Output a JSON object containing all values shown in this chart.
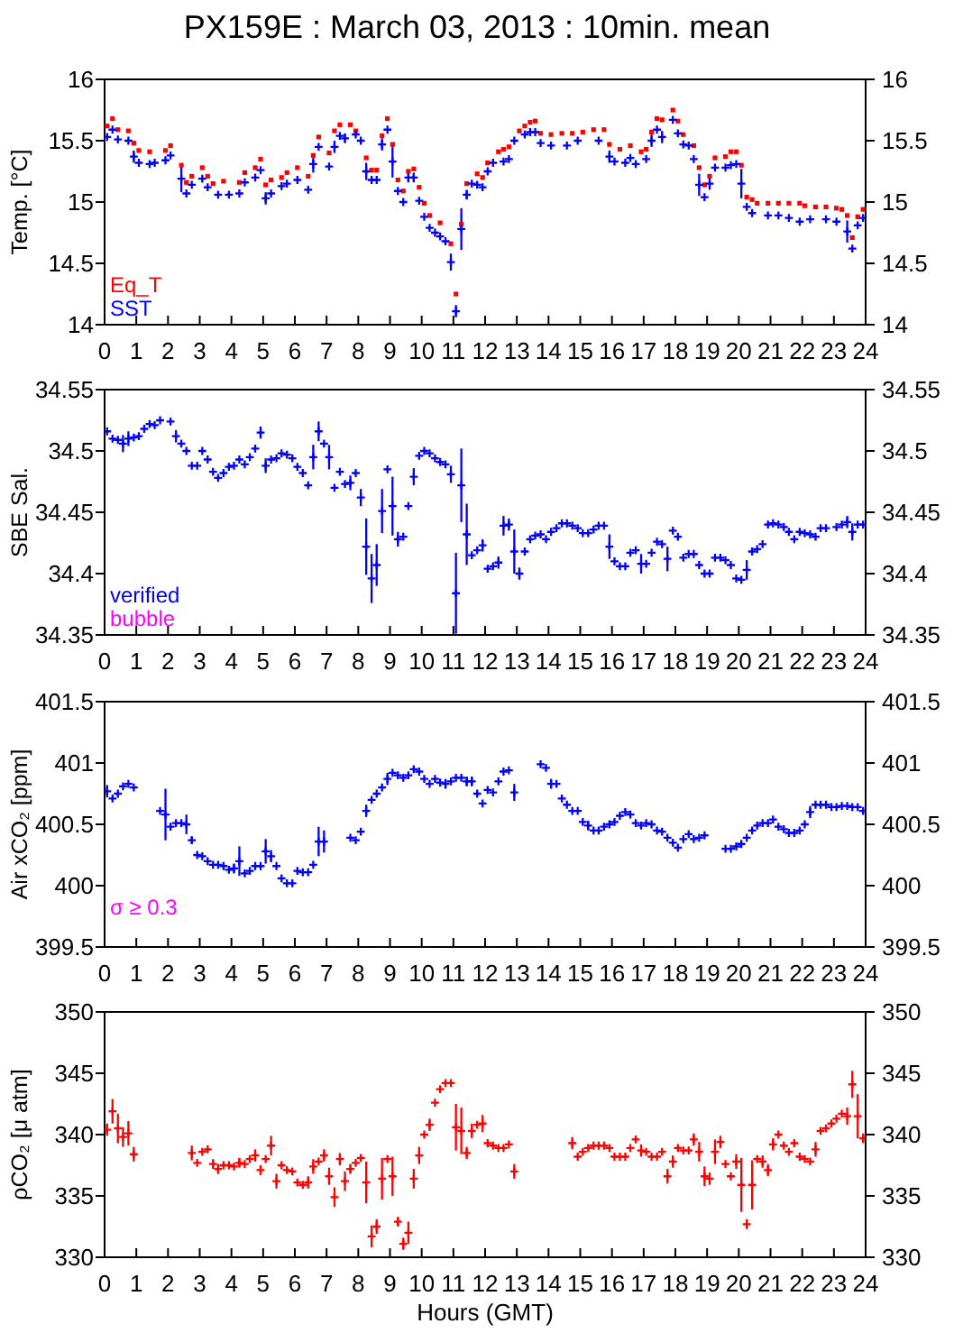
{
  "chart_data": [
    {
      "type": "scatter",
      "title": "PX159E : March 03, 2013 : 10min. mean",
      "ylabel": "Temp. [°C]",
      "xlim": [
        0,
        24
      ],
      "xticks": [
        0,
        1,
        2,
        3,
        4,
        5,
        6,
        7,
        8,
        9,
        10,
        11,
        12,
        13,
        14,
        15,
        16,
        17,
        18,
        19,
        20,
        21,
        22,
        23,
        24
      ],
      "ylim": [
        14,
        16
      ],
      "yticks": [
        14,
        14.5,
        15,
        15.5,
        16
      ],
      "y2lim": [
        14,
        16
      ],
      "y2ticks": [
        14,
        14.5,
        15,
        15.5,
        16
      ],
      "legend": "bottom left",
      "marker": "cross",
      "series": [
        {
          "name": "Eq_T",
          "color": "#ff0000",
          "marker": "square",
          "x": [
            0.08,
            0.25,
            0.42,
            0.75,
            0.92,
            1.08,
            1.42,
            1.92,
            2.08,
            2.42,
            2.58,
            2.75,
            3.08,
            3.25,
            3.42,
            3.75,
            4.25,
            4.42,
            4.75,
            4.92,
            5.08,
            5.25,
            5.58,
            5.75,
            6.08,
            6.42,
            6.58,
            6.75,
            7.08,
            7.25,
            7.42,
            7.75,
            7.92,
            8.25,
            8.42,
            8.58,
            8.75,
            8.92,
            9.08,
            9.25,
            9.42,
            9.58,
            9.75,
            9.92,
            10.08,
            10.25,
            10.58,
            10.92,
            11.08,
            11.25,
            11.42,
            11.75,
            11.92,
            12.08,
            12.42,
            12.58,
            12.75,
            13.08,
            13.25,
            13.42,
            13.58,
            13.75,
            14.08,
            14.42,
            14.75,
            15.08,
            15.42,
            15.75,
            15.92,
            16.25,
            16.58,
            16.92,
            17.08,
            17.25,
            17.42,
            17.58,
            17.92,
            18.08,
            18.25,
            18.58,
            18.75,
            18.92,
            19.08,
            19.25,
            19.58,
            19.75,
            19.92,
            20.08,
            20.25,
            20.42,
            20.58,
            20.92,
            21.25,
            21.58,
            21.92,
            22.08,
            22.42,
            22.75,
            23.08,
            23.25,
            23.42,
            23.58,
            23.75,
            23.92
          ],
          "values": [
            15.62,
            15.68,
            15.59,
            15.58,
            15.48,
            15.42,
            15.41,
            15.42,
            15.46,
            15.3,
            15.16,
            15.21,
            15.28,
            15.21,
            15.15,
            15.17,
            15.16,
            15.24,
            15.28,
            15.35,
            15.14,
            15.18,
            15.2,
            15.24,
            15.28,
            15.21,
            15.38,
            15.53,
            15.4,
            15.58,
            15.63,
            15.63,
            15.58,
            15.36,
            15.26,
            15.26,
            15.54,
            15.68,
            15.47,
            15.18,
            15.09,
            15.25,
            15.27,
            15.12,
            14.99,
            14.89,
            14.83,
            14.66,
            14.25,
            14.82,
            15.15,
            15.23,
            15.2,
            15.32,
            15.41,
            15.43,
            15.45,
            15.58,
            15.62,
            15.65,
            15.66,
            15.56,
            15.55,
            15.56,
            15.56,
            15.57,
            15.59,
            15.59,
            15.47,
            15.43,
            15.46,
            15.41,
            15.43,
            15.57,
            15.68,
            15.67,
            15.75,
            15.66,
            15.55,
            15.46,
            15.28,
            15.14,
            15.21,
            15.36,
            15.37,
            15.41,
            15.41,
            15.3,
            15.04,
            15.02,
            14.99,
            14.99,
            14.99,
            14.99,
            14.99,
            14.97,
            14.96,
            14.96,
            14.95,
            14.94,
            14.89,
            14.71,
            14.88,
            14.94
          ]
        },
        {
          "name": "SST",
          "color": "#0000ff",
          "x": [
            0.08,
            0.25,
            0.42,
            0.75,
            0.92,
            1.08,
            1.42,
            1.58,
            1.92,
            2.08,
            2.42,
            2.58,
            2.75,
            3.08,
            3.25,
            3.58,
            3.92,
            4.25,
            4.42,
            4.75,
            4.92,
            5.08,
            5.25,
            5.58,
            5.75,
            6.08,
            6.42,
            6.58,
            6.75,
            7.08,
            7.25,
            7.42,
            7.58,
            7.92,
            8.08,
            8.25,
            8.42,
            8.58,
            8.75,
            8.92,
            9.08,
            9.25,
            9.42,
            9.58,
            9.75,
            9.92,
            10.08,
            10.25,
            10.42,
            10.58,
            10.75,
            10.92,
            11.08,
            11.25,
            11.42,
            11.58,
            11.75,
            11.92,
            12.08,
            12.25,
            12.58,
            12.75,
            12.92,
            13.25,
            13.42,
            13.58,
            13.75,
            14.08,
            14.58,
            14.92,
            15.58,
            15.92,
            16.08,
            16.42,
            16.58,
            16.75,
            17.08,
            17.25,
            17.42,
            17.58,
            17.92,
            18.08,
            18.25,
            18.42,
            18.58,
            18.75,
            18.92,
            19.08,
            19.25,
            19.58,
            19.75,
            19.92,
            20.08,
            20.25,
            20.42,
            20.92,
            21.25,
            21.58,
            21.92,
            22.25,
            22.75,
            23.08,
            23.42,
            23.58,
            23.75,
            23.92
          ],
          "values": [
            15.53,
            15.59,
            15.51,
            15.5,
            15.37,
            15.32,
            15.31,
            15.32,
            15.34,
            15.38,
            15.19,
            15.07,
            15.14,
            15.19,
            15.12,
            15.06,
            15.06,
            15.07,
            15.16,
            15.2,
            15.26,
            15.03,
            15.07,
            15.13,
            15.15,
            15.18,
            15.1,
            15.31,
            15.45,
            15.29,
            15.45,
            15.54,
            15.52,
            15.55,
            15.5,
            15.25,
            15.18,
            15.18,
            15.47,
            15.59,
            15.33,
            15.09,
            15.0,
            15.2,
            15.2,
            15.01,
            14.88,
            14.79,
            14.75,
            14.72,
            14.68,
            14.51,
            14.11,
            14.78,
            15.06,
            15.15,
            15.14,
            15.12,
            15.25,
            15.32,
            15.33,
            15.35,
            15.5,
            15.55,
            15.57,
            15.57,
            15.48,
            15.46,
            15.46,
            15.5,
            15.5,
            15.37,
            15.33,
            15.32,
            15.36,
            15.31,
            15.35,
            15.5,
            15.59,
            15.53,
            15.67,
            15.56,
            15.47,
            15.46,
            15.35,
            15.14,
            15.04,
            15.15,
            15.28,
            15.28,
            15.3,
            15.31,
            15.15,
            14.96,
            14.91,
            14.89,
            14.89,
            14.87,
            14.84,
            14.86,
            14.86,
            14.84,
            14.76,
            14.62,
            14.81,
            14.87
          ],
          "errors": [
            null,
            null,
            null,
            null,
            0.05,
            null,
            null,
            null,
            null,
            null,
            0.11,
            null,
            null,
            null,
            null,
            null,
            null,
            null,
            null,
            null,
            null,
            0.05,
            null,
            null,
            null,
            null,
            null,
            0.07,
            null,
            null,
            0.05,
            null,
            0.04,
            null,
            null,
            0.07,
            null,
            null,
            0.05,
            null,
            0.13,
            null,
            null,
            0.04,
            0.04,
            null,
            null,
            null,
            null,
            null,
            null,
            0.07,
            0.05,
            0.17,
            0.04,
            null,
            null,
            null,
            null,
            null,
            null,
            null,
            null,
            null,
            null,
            null,
            null,
            null,
            null,
            null,
            null,
            0.05,
            null,
            null,
            null,
            null,
            null,
            0.05,
            null,
            0.05,
            null,
            null,
            null,
            null,
            null,
            0.09,
            null,
            0.05,
            null,
            null,
            null,
            null,
            0.12,
            null,
            null,
            null,
            null,
            null,
            null,
            null,
            null,
            null,
            0.09,
            null,
            null,
            null
          ]
        }
      ]
    },
    {
      "type": "scatter",
      "ylabel": "SBE Sal.",
      "xlim": [
        0,
        24
      ],
      "xticks": [
        0,
        1,
        2,
        3,
        4,
        5,
        6,
        7,
        8,
        9,
        10,
        11,
        12,
        13,
        14,
        15,
        16,
        17,
        18,
        19,
        20,
        21,
        22,
        23,
        24
      ],
      "ylim": [
        34.35,
        34.55
      ],
      "yticks": [
        34.35,
        34.4,
        34.45,
        34.5,
        34.55
      ],
      "y2lim": [
        34.35,
        34.55
      ],
      "y2ticks": [
        34.35,
        34.4,
        34.45,
        34.5,
        34.55
      ],
      "legend": "bottom left",
      "marker": "cross",
      "series": [
        {
          "name": "verified",
          "color": "#0000ff",
          "x": [
            0.08,
            0.25,
            0.42,
            0.58,
            0.75,
            0.92,
            1.08,
            1.25,
            1.42,
            1.58,
            1.75,
            2.08,
            2.25,
            2.42,
            2.58,
            2.75,
            2.92,
            3.08,
            3.25,
            3.42,
            3.58,
            3.75,
            3.92,
            4.08,
            4.25,
            4.42,
            4.58,
            4.75,
            4.92,
            5.08,
            5.25,
            5.42,
            5.58,
            5.75,
            5.92,
            6.08,
            6.25,
            6.42,
            6.58,
            6.75,
            6.92,
            7.08,
            7.25,
            7.42,
            7.58,
            7.75,
            7.92,
            8.08,
            8.25,
            8.42,
            8.58,
            8.75,
            8.92,
            9.08,
            9.25,
            9.42,
            9.58,
            9.75,
            9.92,
            10.08,
            10.25,
            10.42,
            10.58,
            10.75,
            10.92,
            11.08,
            11.25,
            11.42,
            11.58,
            11.75,
            11.92,
            12.08,
            12.25,
            12.42,
            12.58,
            12.75,
            12.92,
            13.08,
            13.25,
            13.42,
            13.58,
            13.75,
            13.92,
            14.08,
            14.25,
            14.42,
            14.58,
            14.75,
            14.92,
            15.08,
            15.25,
            15.42,
            15.58,
            15.75,
            15.92,
            16.08,
            16.25,
            16.42,
            16.58,
            16.75,
            16.92,
            17.08,
            17.25,
            17.42,
            17.58,
            17.75,
            17.92,
            18.08,
            18.25,
            18.42,
            18.58,
            18.75,
            18.92,
            19.08,
            19.25,
            19.42,
            19.58,
            19.75,
            19.92,
            20.08,
            20.25,
            20.42,
            20.58,
            20.75,
            20.92,
            21.08,
            21.25,
            21.42,
            21.58,
            21.75,
            21.92,
            22.08,
            22.25,
            22.42,
            22.58,
            22.75,
            23.08,
            23.25,
            23.42,
            23.58,
            23.75,
            23.92
          ],
          "values": [
            34.516,
            34.51,
            34.509,
            34.506,
            34.51,
            34.511,
            34.512,
            34.518,
            34.522,
            34.521,
            34.525,
            34.524,
            34.512,
            34.506,
            34.5,
            34.488,
            34.488,
            34.5,
            34.493,
            34.483,
            34.478,
            34.482,
            34.487,
            34.488,
            34.493,
            34.489,
            34.495,
            34.502,
            34.515,
            34.488,
            34.493,
            34.494,
            34.498,
            34.497,
            34.494,
            34.487,
            34.482,
            34.472,
            34.495,
            34.516,
            34.506,
            34.495,
            34.47,
            34.483,
            34.473,
            34.474,
            34.482,
            34.462,
            34.422,
            34.396,
            34.407,
            34.451,
            34.485,
            34.455,
            34.428,
            34.43,
            34.455,
            34.479,
            34.496,
            34.5,
            34.498,
            34.494,
            34.491,
            34.489,
            34.481,
            34.384,
            34.472,
            34.432,
            34.415,
            34.419,
            34.423,
            34.404,
            34.406,
            34.409,
            34.439,
            34.44,
            34.418,
            34.4,
            34.418,
            34.428,
            34.431,
            34.432,
            34.428,
            34.434,
            34.437,
            34.441,
            34.441,
            34.439,
            34.437,
            34.433,
            34.433,
            34.436,
            34.439,
            34.439,
            34.422,
            34.41,
            34.406,
            34.406,
            34.417,
            34.419,
            34.408,
            34.408,
            34.417,
            34.426,
            34.424,
            34.412,
            34.435,
            34.43,
            34.413,
            34.416,
            34.416,
            34.407,
            34.4,
            34.4,
            34.413,
            34.413,
            34.411,
            34.407,
            34.396,
            34.395,
            34.403,
            34.418,
            34.42,
            34.424,
            34.44,
            34.441,
            34.44,
            34.438,
            34.434,
            34.428,
            34.434,
            34.433,
            34.432,
            34.43,
            34.437,
            34.437,
            34.438,
            34.44,
            34.442,
            34.434,
            34.44,
            34.44
          ],
          "errors": [
            null,
            null,
            null,
            0.007,
            0.006,
            null,
            null,
            null,
            null,
            null,
            null,
            null,
            0.005,
            null,
            null,
            null,
            null,
            null,
            null,
            null,
            null,
            null,
            null,
            null,
            null,
            null,
            null,
            null,
            0.005,
            0.006,
            null,
            null,
            null,
            null,
            null,
            null,
            null,
            null,
            0.01,
            0.008,
            null,
            0.01,
            null,
            null,
            null,
            0.006,
            null,
            0.007,
            0.023,
            0.02,
            0.017,
            0.018,
            null,
            0.024,
            0.006,
            null,
            null,
            0.007,
            null,
            null,
            null,
            null,
            null,
            null,
            0.007,
            0.033,
            0.03,
            0.025,
            null,
            null,
            0.005,
            null,
            null,
            0.005,
            0.008,
            0.005,
            0.018,
            0.005,
            null,
            null,
            null,
            null,
            null,
            null,
            null,
            null,
            null,
            null,
            null,
            null,
            null,
            null,
            null,
            null,
            0.01,
            null,
            null,
            null,
            null,
            null,
            0.008,
            null,
            null,
            null,
            null,
            0.01,
            null,
            null,
            null,
            null,
            null,
            null,
            null,
            null,
            null,
            null,
            null,
            null,
            null,
            null,
            0.008,
            null,
            null,
            null,
            null,
            null,
            null,
            null,
            null,
            null,
            null,
            null,
            null,
            null,
            null,
            null,
            null,
            null,
            0.005,
            0.007,
            null,
            null
          ]
        },
        {
          "name": "bubble",
          "color": "#ff00ff"
        }
      ]
    },
    {
      "type": "scatter",
      "ylabel": "Air xCO₂ [ppm]",
      "xlim": [
        0,
        24
      ],
      "xticks": [
        0,
        1,
        2,
        3,
        4,
        5,
        6,
        7,
        8,
        9,
        10,
        11,
        12,
        13,
        14,
        15,
        16,
        17,
        18,
        19,
        20,
        21,
        22,
        23,
        24
      ],
      "ylim": [
        399.5,
        401.5
      ],
      "yticks": [
        399.5,
        400,
        400.5,
        401,
        401.5
      ],
      "y2lim": [
        399.5,
        401.5
      ],
      "y2ticks": [
        399.5,
        400,
        400.5,
        401,
        401.5
      ],
      "marker": "cross",
      "annotations": [
        "σ ≥ 0.3"
      ],
      "series": [
        {
          "color": "#0000ff",
          "x": [
            0.08,
            0.25,
            0.42,
            0.58,
            0.75,
            0.92,
            1.75,
            1.92,
            2.08,
            2.25,
            2.42,
            2.58,
            2.75,
            2.92,
            3.08,
            3.25,
            3.42,
            3.58,
            3.75,
            3.92,
            4.08,
            4.25,
            4.42,
            4.58,
            4.75,
            4.92,
            5.08,
            5.25,
            5.42,
            5.58,
            5.75,
            5.92,
            6.08,
            6.25,
            6.42,
            6.58,
            6.75,
            6.92,
            7.75,
            7.92,
            8.08,
            8.25,
            8.42,
            8.58,
            8.75,
            8.92,
            9.08,
            9.25,
            9.42,
            9.58,
            9.75,
            9.92,
            10.08,
            10.25,
            10.42,
            10.58,
            10.75,
            10.92,
            11.08,
            11.25,
            11.42,
            11.58,
            11.75,
            11.92,
            12.08,
            12.25,
            12.42,
            12.58,
            12.75,
            12.92,
            13.75,
            13.92,
            14.08,
            14.25,
            14.42,
            14.58,
            14.75,
            14.92,
            15.08,
            15.25,
            15.42,
            15.58,
            15.75,
            15.92,
            16.08,
            16.25,
            16.42,
            16.58,
            16.75,
            16.92,
            17.08,
            17.25,
            17.42,
            17.58,
            17.75,
            17.92,
            18.08,
            18.25,
            18.42,
            18.58,
            18.75,
            18.92,
            19.58,
            19.75,
            19.92,
            20.08,
            20.25,
            20.42,
            20.58,
            20.75,
            20.92,
            21.08,
            21.25,
            21.42,
            21.58,
            21.75,
            21.92,
            22.08,
            22.25,
            22.42,
            22.58,
            22.75,
            22.92,
            23.08,
            23.25,
            23.42,
            23.58,
            23.75,
            23.92
          ],
          "values": [
            400.77,
            400.71,
            400.75,
            400.81,
            400.83,
            400.8,
            400.61,
            400.58,
            400.48,
            400.51,
            400.51,
            400.5,
            400.37,
            400.25,
            400.24,
            400.2,
            400.17,
            400.17,
            400.16,
            400.13,
            400.14,
            400.2,
            400.1,
            400.12,
            400.16,
            400.16,
            400.28,
            400.24,
            400.16,
            400.06,
            400.02,
            400.02,
            400.12,
            400.11,
            400.11,
            400.17,
            400.36,
            400.36,
            400.39,
            400.37,
            400.44,
            400.61,
            400.7,
            400.75,
            400.8,
            400.87,
            400.92,
            400.9,
            400.88,
            400.9,
            400.95,
            400.93,
            400.87,
            400.83,
            400.87,
            400.84,
            400.83,
            400.85,
            400.88,
            400.88,
            400.85,
            400.85,
            400.75,
            400.67,
            400.78,
            400.76,
            400.85,
            400.93,
            400.94,
            400.76,
            400.99,
            400.96,
            400.83,
            400.83,
            400.71,
            400.66,
            400.61,
            400.61,
            400.52,
            400.49,
            400.45,
            400.45,
            400.48,
            400.5,
            400.52,
            400.57,
            400.6,
            400.58,
            400.51,
            400.49,
            400.51,
            400.5,
            400.45,
            400.44,
            400.39,
            400.35,
            400.31,
            400.38,
            400.42,
            400.38,
            400.39,
            400.41,
            400.3,
            400.3,
            400.32,
            400.34,
            400.39,
            400.45,
            400.49,
            400.51,
            400.51,
            400.54,
            400.48,
            400.46,
            400.43,
            400.43,
            400.45,
            400.5,
            400.6,
            400.66,
            400.66,
            400.66,
            400.64,
            400.64,
            400.65,
            400.65,
            400.64,
            400.64,
            400.61
          ],
          "errors": [
            0.05,
            null,
            null,
            null,
            null,
            null,
            null,
            0.21,
            null,
            null,
            null,
            0.08,
            0.03,
            null,
            null,
            null,
            null,
            null,
            null,
            null,
            0.04,
            0.12,
            null,
            null,
            null,
            null,
            0.1,
            0.05,
            null,
            null,
            null,
            null,
            null,
            null,
            null,
            null,
            0.12,
            0.09,
            null,
            null,
            null,
            0.05,
            null,
            null,
            null,
            0.05,
            null,
            null,
            null,
            null,
            null,
            null,
            null,
            null,
            null,
            null,
            0.04,
            null,
            null,
            null,
            0.04,
            0.04,
            null,
            null,
            null,
            null,
            null,
            null,
            null,
            0.07,
            null,
            null,
            0.04,
            null,
            null,
            null,
            null,
            null,
            null,
            0.04,
            null,
            null,
            null,
            null,
            null,
            null,
            null,
            null,
            null,
            null,
            null,
            null,
            null,
            null,
            null,
            null,
            null,
            null,
            null,
            null,
            null,
            null,
            null,
            null,
            null,
            null,
            null,
            null,
            null,
            null,
            null,
            null,
            null,
            null,
            null,
            null,
            null,
            null,
            0.05,
            null,
            null,
            null,
            null,
            null,
            null,
            null,
            null,
            null,
            null
          ]
        }
      ]
    },
    {
      "type": "scatter",
      "ylabel": "ρCO₂ [μ atm]",
      "xlabel": "Hours (GMT)",
      "xlim": [
        0,
        24
      ],
      "xticks": [
        0,
        1,
        2,
        3,
        4,
        5,
        6,
        7,
        8,
        9,
        10,
        11,
        12,
        13,
        14,
        15,
        16,
        17,
        18,
        19,
        20,
        21,
        22,
        23,
        24
      ],
      "ylim": [
        330,
        350
      ],
      "yticks": [
        330,
        335,
        340,
        345,
        350
      ],
      "y2lim": [
        330,
        350
      ],
      "y2ticks": [
        330,
        335,
        340,
        345,
        350
      ],
      "marker": "cross",
      "series": [
        {
          "color": "#ff0000",
          "x": [
            0.08,
            0.25,
            0.42,
            0.58,
            0.75,
            0.92,
            2.75,
            2.92,
            3.08,
            3.25,
            3.42,
            3.58,
            3.75,
            3.92,
            4.08,
            4.25,
            4.42,
            4.58,
            4.75,
            4.92,
            5.08,
            5.25,
            5.42,
            5.58,
            5.75,
            5.92,
            6.08,
            6.25,
            6.42,
            6.58,
            6.75,
            6.92,
            7.08,
            7.25,
            7.42,
            7.58,
            7.75,
            7.92,
            8.08,
            8.25,
            8.42,
            8.58,
            8.75,
            8.92,
            9.08,
            9.25,
            9.42,
            9.58,
            9.75,
            9.92,
            10.08,
            10.25,
            10.42,
            10.58,
            10.75,
            10.92,
            11.08,
            11.25,
            11.42,
            11.58,
            11.75,
            11.92,
            12.08,
            12.25,
            12.42,
            12.58,
            12.75,
            12.92,
            14.75,
            14.92,
            15.08,
            15.25,
            15.42,
            15.58,
            15.75,
            15.92,
            16.08,
            16.25,
            16.42,
            16.58,
            16.75,
            16.92,
            17.08,
            17.25,
            17.42,
            17.58,
            17.75,
            17.92,
            18.08,
            18.25,
            18.42,
            18.58,
            18.75,
            18.92,
            19.08,
            19.25,
            19.42,
            19.58,
            19.75,
            19.92,
            20.08,
            20.25,
            20.42,
            20.58,
            20.75,
            20.92,
            21.08,
            21.25,
            21.42,
            21.58,
            21.75,
            21.92,
            22.08,
            22.25,
            22.42,
            22.58,
            22.75,
            22.92,
            23.08,
            23.25,
            23.42,
            23.58,
            23.75,
            23.92
          ],
          "values": [
            340.4,
            341.9,
            340.5,
            339.8,
            340.1,
            338.4,
            338.5,
            337.7,
            338.6,
            338.8,
            337.6,
            337.2,
            337.5,
            337.5,
            337.4,
            337.7,
            337.6,
            338.0,
            338.3,
            337.1,
            338.0,
            339.1,
            336.2,
            337.5,
            337.1,
            337.0,
            336.1,
            335.9,
            336.1,
            337.4,
            337.8,
            338.3,
            336.6,
            334.9,
            338.0,
            336.2,
            337.2,
            337.7,
            338.1,
            336.1,
            331.7,
            332.5,
            336.4,
            338.0,
            336.6,
            332.9,
            331.1,
            332.0,
            336.4,
            338.3,
            340.0,
            340.8,
            342.6,
            343.7,
            344.2,
            344.2,
            340.6,
            340.3,
            338.5,
            340.3,
            340.8,
            340.9,
            339.3,
            339.1,
            338.9,
            338.9,
            339.2,
            337.0,
            339.3,
            338.2,
            338.6,
            338.9,
            339.1,
            339.1,
            339.1,
            338.9,
            338.2,
            338.2,
            338.2,
            338.9,
            339.6,
            338.7,
            338.6,
            338.2,
            338.2,
            338.6,
            336.6,
            337.8,
            338.9,
            338.7,
            338.7,
            339.6,
            338.6,
            336.6,
            336.4,
            338.6,
            339.4,
            337.6,
            336.6,
            337.8,
            335.9,
            332.7,
            335.9,
            338.0,
            337.8,
            337.1,
            339.2,
            340.0,
            339.1,
            338.6,
            339.3,
            338.2,
            338.0,
            337.8,
            338.8,
            340.3,
            340.5,
            340.9,
            341.3,
            341.7,
            341.5,
            344.1,
            341.5,
            339.7
          ],
          "errors": [
            0.5,
            1.0,
            1.2,
            0.8,
            1.0,
            0.6,
            0.6,
            null,
            null,
            null,
            0.4,
            0.4,
            null,
            null,
            null,
            0.4,
            null,
            null,
            0.5,
            0.4,
            null,
            0.8,
            0.6,
            null,
            null,
            null,
            null,
            null,
            0.5,
            0.6,
            null,
            0.5,
            0.7,
            0.8,
            0.5,
            0.8,
            0.4,
            null,
            null,
            1.7,
            0.9,
            0.6,
            1.7,
            null,
            1.6,
            0.4,
            0.5,
            0.9,
            0.8,
            0.7,
            null,
            0.5,
            null,
            null,
            null,
            null,
            1.9,
            1.9,
            0.5,
            0.6,
            null,
            0.7,
            null,
            null,
            null,
            null,
            null,
            0.6,
            0.5,
            null,
            null,
            null,
            null,
            null,
            null,
            null,
            null,
            null,
            null,
            null,
            null,
            0.5,
            null,
            null,
            null,
            null,
            0.6,
            0.5,
            null,
            null,
            null,
            0.5,
            0.8,
            0.8,
            0.5,
            1.0,
            0.5,
            null,
            null,
            0.6,
            2.2,
            0.4,
            2.0,
            null,
            0.5,
            0.5,
            0.5,
            null,
            null,
            null,
            null,
            null,
            null,
            null,
            0.6,
            null,
            null,
            null,
            null,
            null,
            0.7,
            1.1,
            1.8,
            0.4
          ]
        }
      ]
    }
  ]
}
